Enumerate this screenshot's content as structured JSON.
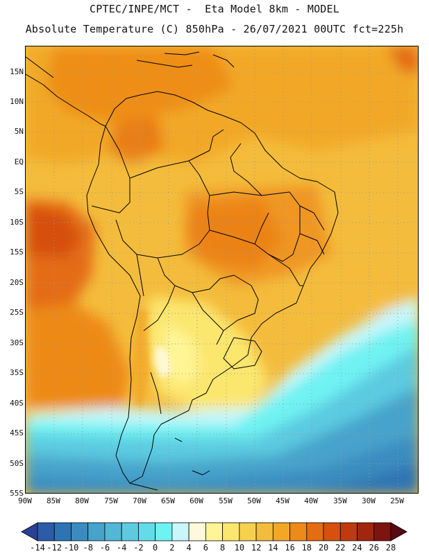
{
  "header": {
    "line1": "CPTEC/INPE/MCT -  Eta Model 8km - MODEL",
    "line2": "Absolute Temperature (C) 850hPa - 26/07/2021 00UTC fct=225h"
  },
  "map": {
    "lat_labels": [
      "15N",
      "10N",
      "5N",
      "EQ",
      "5S",
      "10S",
      "15S",
      "20S",
      "25S",
      "30S",
      "35S",
      "40S",
      "45S",
      "50S",
      "55S"
    ],
    "lon_labels": [
      "90W",
      "85W",
      "80W",
      "75W",
      "70W",
      "65W",
      "60W",
      "55W",
      "50W",
      "45W",
      "40W",
      "35W",
      "30W",
      "25W"
    ],
    "lat_range": [
      -55,
      19
    ],
    "lon_range": [
      -90,
      -24
    ]
  },
  "colorbar": {
    "ticks": [
      "-14",
      "-12",
      "-10",
      "-8",
      "-6",
      "-4",
      "-2",
      "0",
      "2",
      "4",
      "6",
      "8",
      "10",
      "12",
      "14",
      "16",
      "18",
      "20",
      "22",
      "24",
      "26",
      "28"
    ],
    "colors": [
      "#2a3f99",
      "#2c5ca7",
      "#2e74b3",
      "#3a8cc0",
      "#46a3cb",
      "#52b8d6",
      "#5ccbe0",
      "#62dde8",
      "#6ff2f2",
      "#c8f6fa",
      "#fff9dc",
      "#fff596",
      "#fbe66e",
      "#f7d14e",
      "#f4bc3c",
      "#f2a826",
      "#ed8a18",
      "#e46c12",
      "#d6500e",
      "#bf3a0e",
      "#a2260e",
      "#7d1410",
      "#5a0812"
    ]
  }
}
